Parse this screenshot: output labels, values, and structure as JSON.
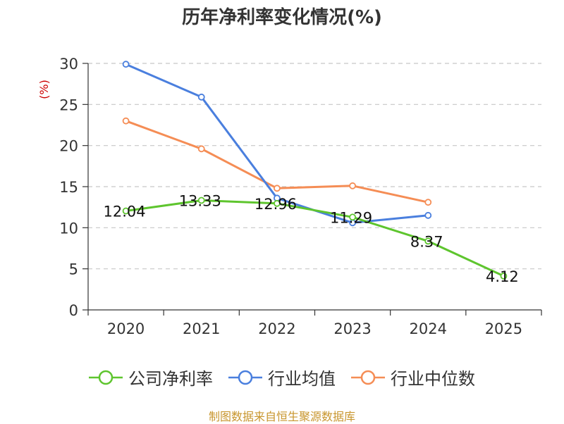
{
  "chart_data": {
    "type": "line",
    "title": "历年净利率变化情况(%)",
    "ylabel": "(%)",
    "xlabel": "",
    "categories": [
      "2020",
      "2021",
      "2022",
      "2023",
      "2024",
      "2025"
    ],
    "ylim": [
      0,
      30
    ],
    "yticks": [
      0,
      5,
      10,
      15,
      20,
      25,
      30
    ],
    "grid": true,
    "legend_position": "bottom",
    "series": [
      {
        "name": "公司净利率",
        "color": "#5ec52e",
        "values": [
          12.04,
          13.33,
          12.96,
          11.29,
          8.37,
          4.12
        ],
        "labels": [
          "12.04",
          "13.33",
          "12.96",
          "11.29",
          "8.37",
          "4.12"
        ]
      },
      {
        "name": "行业均值",
        "color": "#4a7fde",
        "values": [
          29.9,
          25.9,
          13.6,
          10.6,
          11.5,
          null
        ],
        "labels": []
      },
      {
        "name": "行业中位数",
        "color": "#f58d55",
        "values": [
          23.0,
          19.6,
          14.8,
          15.1,
          13.1,
          null
        ],
        "labels": []
      }
    ]
  },
  "source": "制图数据来自恒生聚源数据库"
}
